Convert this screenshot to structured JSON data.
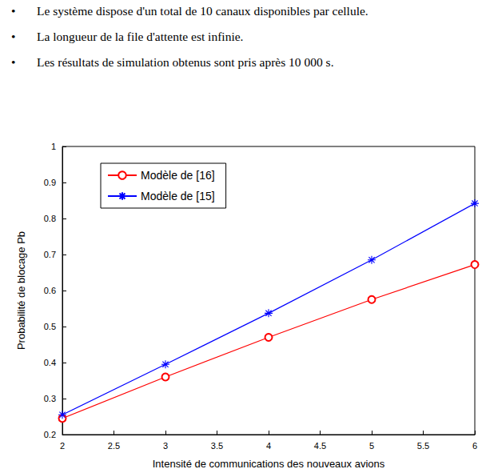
{
  "bullets": [
    "Le système dispose d'un total de 10 canaux disponibles par cellule.",
    "La longueur de la file d'attente est infinie.",
    "Les résultats de simulation obtenus sont pris après 10 000 s."
  ],
  "chart_data": {
    "type": "line",
    "x_label": "Intensité de communications des nouveaux avions",
    "y_label": "Probabilité de blocage Pb",
    "x": [
      2,
      3,
      4,
      5,
      6
    ],
    "series": [
      {
        "name": "Modèle de [16]",
        "color": "#ff0000",
        "marker": "circle",
        "values": [
          0.245,
          0.36,
          0.47,
          0.575,
          0.672
        ]
      },
      {
        "name": "Modèle de [15]",
        "color": "#0000ff",
        "marker": "star",
        "values": [
          0.255,
          0.395,
          0.537,
          0.685,
          0.842
        ]
      }
    ],
    "xlim": [
      2,
      6
    ],
    "xticks": [
      2,
      2.5,
      3,
      3.5,
      4,
      4.5,
      5,
      5.5,
      6
    ],
    "ylim": [
      0.2,
      1
    ],
    "yticks": [
      0.2,
      0.3,
      0.4,
      0.5,
      0.6,
      0.7,
      0.8,
      0.9,
      1
    ],
    "grid": false,
    "legend": "upper left"
  }
}
